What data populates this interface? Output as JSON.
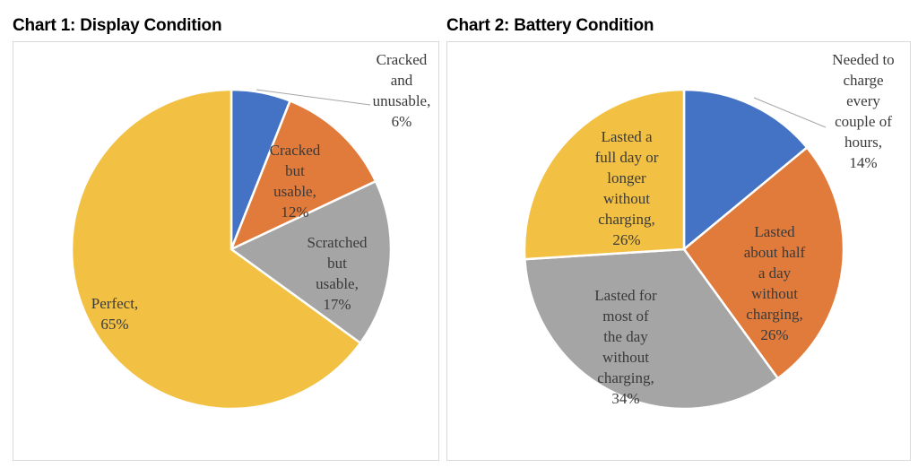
{
  "chart_data": [
    {
      "type": "pie",
      "title": "Chart 1: Display Condition",
      "categories": [
        "Cracked and unusable",
        "Cracked but usable",
        "Scratched but usable",
        "Perfect"
      ],
      "values": [
        6,
        12,
        17,
        65
      ],
      "unit": "%",
      "colors": [
        "#4472c4",
        "#e07b3c",
        "#a5a5a5",
        "#f2c143"
      ],
      "labels": [
        [
          "Cracked",
          "and",
          "unusable,",
          "6%"
        ],
        [
          "Cracked",
          "but",
          "usable,",
          "12%"
        ],
        [
          "Scratched",
          "but",
          "usable,",
          "17%"
        ],
        [
          "Perfect,",
          "65%"
        ]
      ],
      "legend": "none"
    },
    {
      "type": "pie",
      "title": "Chart 2: Battery Condition",
      "categories": [
        "Needed to charge every couple of hours",
        "Lasted about half a day without charging",
        "Lasted for most of the day without charging",
        "Lasted a full day or longer without charging"
      ],
      "values": [
        14,
        26,
        34,
        26
      ],
      "unit": "%",
      "colors": [
        "#4472c4",
        "#e07b3c",
        "#a5a5a5",
        "#f2c143"
      ],
      "labels": [
        [
          "Needed to",
          "charge",
          "every",
          "couple of",
          "hours,",
          "14%"
        ],
        [
          "Lasted",
          "about half",
          "a day",
          "without",
          "charging,",
          "26%"
        ],
        [
          "Lasted for",
          "most of",
          "the day",
          "without",
          "charging,",
          "34%"
        ],
        [
          "Lasted a",
          "full day or",
          "longer",
          "without",
          "charging,",
          "26%"
        ]
      ],
      "legend": "none"
    }
  ]
}
